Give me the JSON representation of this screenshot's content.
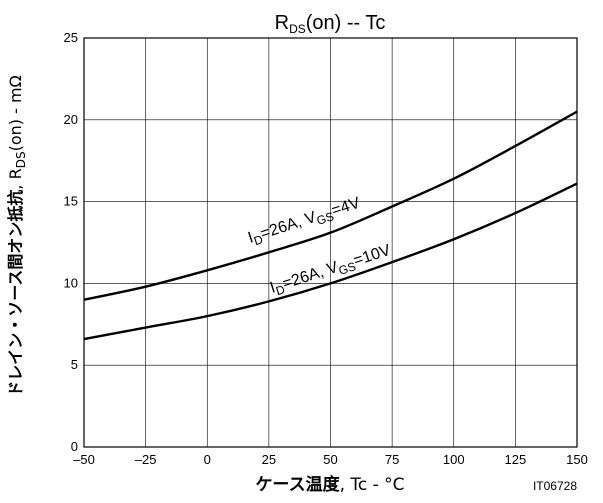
{
  "chart_data": {
    "type": "line",
    "title": {
      "main": "R",
      "sub": "DS",
      "rest": "(on)  --  Tc"
    },
    "xlabel": {
      "jp": "ケース温度",
      "rest": ", Tc  -  °C"
    },
    "ylabel": {
      "jp": "ドレイン・ソース間オン抵抗",
      "mid": ", R",
      "sub": "DS",
      "rest": "(on)  -  mΩ"
    },
    "xlim": [
      -50,
      150
    ],
    "ylim": [
      0,
      25
    ],
    "xticks": [
      -50,
      -25,
      0,
      25,
      50,
      75,
      100,
      125,
      150
    ],
    "xtick_labels": [
      "–50",
      "–25",
      "0",
      "25",
      "50",
      "75",
      "100",
      "125",
      "150"
    ],
    "yticks": [
      0,
      5,
      10,
      15,
      20,
      25
    ],
    "grid": true,
    "code": "IT06728",
    "series": [
      {
        "label": {
          "p1": "I",
          "s1": "D",
          "p2": "=26A, V",
          "s2": "GS",
          "p3": "=4V"
        },
        "x": [
          -50,
          -25,
          0,
          25,
          50,
          75,
          100,
          125,
          150
        ],
        "y": [
          9.0,
          9.8,
          10.8,
          11.9,
          13.1,
          14.7,
          16.4,
          18.4,
          20.5
        ]
      },
      {
        "label": {
          "p1": "I",
          "s1": "D",
          "p2": "=26A, V",
          "s2": "GS",
          "p3": "=10V"
        },
        "x": [
          -50,
          -25,
          0,
          25,
          50,
          75,
          100,
          125,
          150
        ],
        "y": [
          6.6,
          7.3,
          8.0,
          8.9,
          10.0,
          11.3,
          12.7,
          14.3,
          16.1
        ]
      }
    ]
  }
}
